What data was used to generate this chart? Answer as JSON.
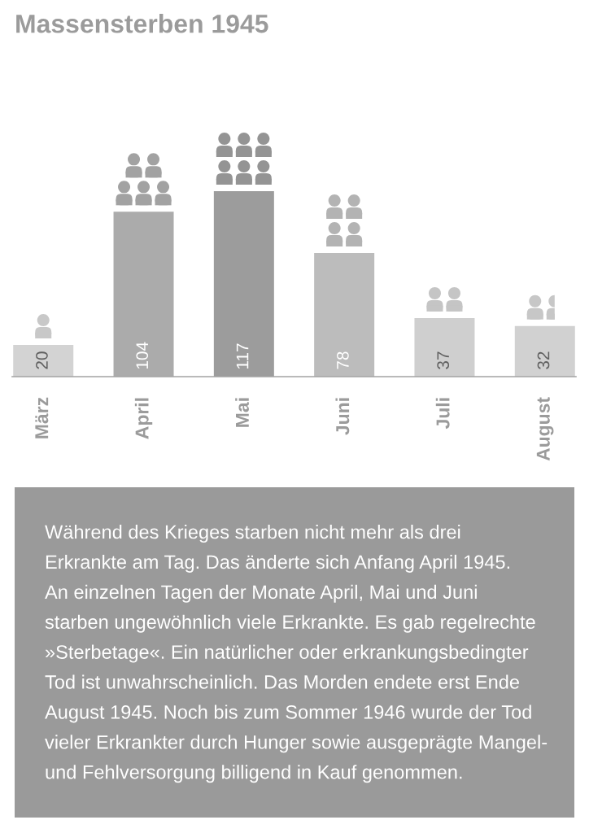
{
  "chart_data": {
    "type": "bar",
    "title": "Massensterben 1945",
    "categories": [
      "März",
      "April",
      "Mai",
      "Juni",
      "Juli",
      "August"
    ],
    "values": [
      20,
      104,
      117,
      78,
      37,
      32
    ],
    "colors": [
      "#d3d3d3",
      "#ababab",
      "#9c9c9c",
      "#bcbcbc",
      "#cfcfcf",
      "#d1d1d1"
    ],
    "data_labels": true,
    "tick_labels": "x",
    "annotations": [
      "Während des Krieges starben nicht mehr als drei\nErkrankte am Tag. Das änderte sich Anfang April 1945.\nAn einzelnen Tagen der Monate April, Mai und Juni\nstarben ungewöhnlich viele Erkrankte. Es gab regelrechte\n»Sterbetage«. Ein natürlicher oder erkrankungsbedingter\nTod ist unwahrscheinlich. Das Morden endete erst Ende\nAugust 1945. Noch bis zum Sommer 1946 wurde der Tod\nvieler Erkrankter durch Hunger sowie ausgeprägte Mangel-\nund Fehlversorgung billigend in Kauf genommen."
    ]
  }
}
